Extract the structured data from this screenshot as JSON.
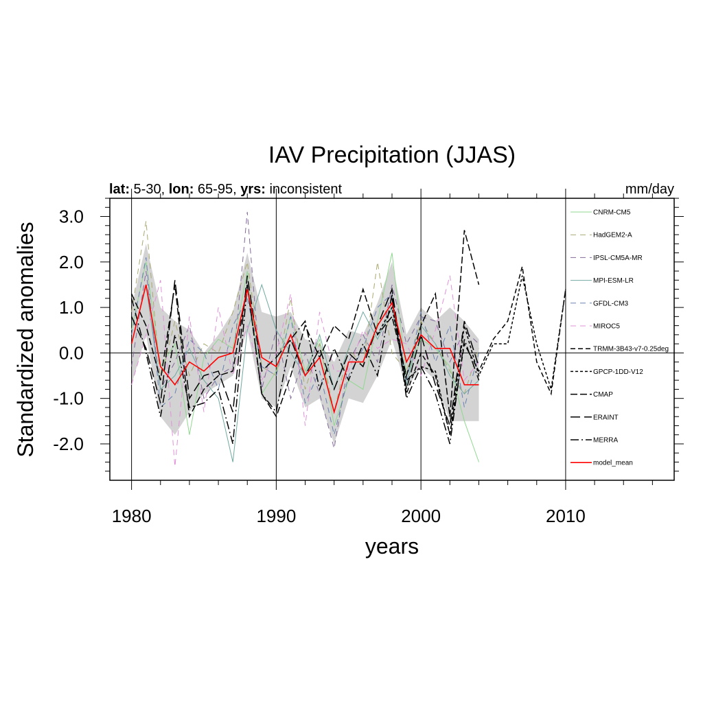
{
  "chart_data": {
    "type": "line",
    "title": "IAV Precipitation (JJAS)",
    "subtitle_parts": [
      {
        "text": "lat:",
        "bold": true
      },
      {
        "text": " 5-30, ",
        "bold": false
      },
      {
        "text": "lon:",
        "bold": true
      },
      {
        "text": " 65-95, ",
        "bold": false
      },
      {
        "text": "yrs:",
        "bold": true
      },
      {
        "text": " inconsistent",
        "bold": false
      }
    ],
    "units": "mm/day",
    "xlabel": "years",
    "ylabel": "Standardized anomalies",
    "xlim": [
      1978.5,
      2017.5
    ],
    "ylim": [
      -2.8,
      3.4
    ],
    "x_ticks": [
      1980,
      1990,
      2000,
      2010
    ],
    "y_ticks": [
      -2.0,
      -1.0,
      0.0,
      1.0,
      2.0,
      3.0
    ],
    "y_tick_labels": [
      "-2.0",
      "-1.0",
      "0.0",
      "1.0",
      "2.0",
      "3.0"
    ],
    "vertical_lines": [
      1980,
      1990,
      2000,
      2010
    ],
    "zero_line": true,
    "legend_placement": "right",
    "spread_band": {
      "x": [
        1980,
        1981,
        1982,
        1983,
        1984,
        1985,
        1986,
        1987,
        1988,
        1989,
        1990,
        1991,
        1992,
        1993,
        1994,
        1995,
        1996,
        1997,
        1998,
        1999,
        2000,
        2001,
        2002,
        2003,
        2004
      ],
      "upper": [
        1.0,
        2.4,
        1.0,
        0.7,
        0.5,
        0.0,
        0.4,
        0.9,
        2.2,
        0.9,
        0.8,
        0.9,
        0.3,
        0.2,
        -0.2,
        0.5,
        0.4,
        1.1,
        2.0,
        0.4,
        1.0,
        0.7,
        1.0,
        0.7,
        0.3
      ],
      "lower": [
        -0.7,
        0.4,
        -1.4,
        -1.8,
        -1.3,
        -0.9,
        -0.7,
        -0.5,
        0.5,
        -1.0,
        -1.2,
        -0.3,
        -1.2,
        -1.0,
        -2.0,
        -1.0,
        -1.1,
        -0.5,
        0.3,
        -0.8,
        -0.3,
        -0.6,
        -1.5,
        -1.5,
        -1.5
      ]
    },
    "series": [
      {
        "name": "CNRM-CM5",
        "color": "#90d890",
        "dash": "",
        "width": 1,
        "x": [
          1980,
          1981,
          1982,
          1983,
          1984,
          1985,
          1986,
          1987,
          1988,
          1989,
          1990,
          1991,
          1992,
          1993,
          1994,
          1995,
          1996,
          1997,
          1998,
          1999,
          2000,
          2001,
          2002,
          2003,
          2004
        ],
        "values": [
          0.5,
          2.0,
          -0.3,
          0.2,
          -1.8,
          -0.1,
          0.3,
          0.1,
          1.8,
          -0.9,
          -0.4,
          0.8,
          -0.4,
          0.3,
          -1.6,
          -0.6,
          -0.8,
          0.7,
          2.2,
          -0.5,
          0.3,
          0.1,
          -0.3,
          -1.5,
          -2.4
        ]
      },
      {
        "name": "HadGEM2-A",
        "color": "#a8a870",
        "dash": "8,6",
        "width": 1,
        "x": [
          1980,
          1981,
          1982,
          1983,
          1984,
          1985,
          1986,
          1987,
          1988,
          1989,
          1990,
          1991,
          1992,
          1993,
          1994,
          1995,
          1996,
          1997,
          1998,
          1999,
          2000,
          2001,
          2002,
          2003,
          2004
        ],
        "values": [
          0.9,
          2.9,
          -0.6,
          0.7,
          -0.5,
          0.2,
          0.0,
          0.9,
          2.0,
          -0.3,
          -0.5,
          1.2,
          -0.8,
          0.2,
          -1.3,
          0.1,
          -0.3,
          2.0,
          0.0,
          -0.4,
          0.7,
          0.2,
          -0.4,
          -0.9,
          0.1
        ]
      },
      {
        "name": "IPSL-CM5A-MR",
        "color": "#806898",
        "dash": "8,6",
        "width": 1,
        "x": [
          1980,
          1981,
          1982,
          1983,
          1984,
          1985,
          1986,
          1987,
          1988,
          1989,
          1990,
          1991,
          1992,
          1993,
          1994,
          1995,
          1996,
          1997,
          1998,
          1999,
          2000,
          2001,
          2002,
          2003,
          2004
        ],
        "values": [
          -0.3,
          1.8,
          -0.8,
          -0.2,
          0.6,
          -1.0,
          -0.5,
          -0.3,
          3.1,
          -0.8,
          0.5,
          -1.0,
          0.0,
          -0.9,
          -2.1,
          -0.2,
          0.4,
          -0.2,
          1.5,
          0.2,
          0.8,
          0.7,
          -0.2,
          0.5,
          0.2
        ]
      },
      {
        "name": "MPI-ESM-LR",
        "color": "#70a8a0",
        "dash": "",
        "width": 1,
        "x": [
          1980,
          1981,
          1982,
          1983,
          1984,
          1985,
          1986,
          1987,
          1988,
          1989,
          1990,
          1991,
          1992,
          1993,
          1994,
          1995,
          1996,
          1997,
          1998,
          1999,
          2000,
          2001,
          2002,
          2003,
          2004
        ],
        "values": [
          0.2,
          1.5,
          -0.8,
          -0.5,
          0.1,
          -0.6,
          -1.0,
          -2.4,
          0.5,
          1.5,
          0.5,
          0.0,
          -0.5,
          0.4,
          -0.8,
          0.1,
          0.9,
          0.3,
          1.0,
          -0.7,
          0.6,
          0.2,
          -0.5,
          -0.9,
          -0.6
        ]
      },
      {
        "name": "GFDL-CM3",
        "color": "#6880b0",
        "dash": "8,6",
        "width": 1,
        "x": [
          1980,
          1981,
          1982,
          1983,
          1984,
          1985,
          1986,
          1987,
          1988,
          1989,
          1990,
          1991,
          1992,
          1993,
          1994,
          1995,
          1996,
          1997,
          1998,
          1999,
          2000,
          2001,
          2002,
          2003,
          2004
        ],
        "values": [
          0.4,
          2.1,
          -1.2,
          -0.9,
          0.3,
          0.0,
          -0.8,
          0.6,
          1.2,
          -0.3,
          -0.5,
          0.8,
          -1.1,
          -0.4,
          -1.8,
          -0.5,
          0.1,
          1.0,
          1.3,
          -0.6,
          0.9,
          -0.2,
          0.6,
          -1.2,
          0.0
        ]
      },
      {
        "name": "MIROC5",
        "color": "#e090d8",
        "dash": "8,6",
        "width": 1,
        "x": [
          1980,
          1981,
          1982,
          1983,
          1984,
          1985,
          1986,
          1987,
          1988,
          1989,
          1990,
          1991,
          1992,
          1993,
          1994,
          1995,
          1996,
          1997,
          1998,
          1999,
          2000,
          2001,
          2002,
          2003,
          2004
        ],
        "values": [
          -0.7,
          0.4,
          1.6,
          -2.5,
          0.8,
          -1.3,
          1.0,
          -0.5,
          0.6,
          -0.6,
          0.0,
          1.3,
          -1.6,
          0.9,
          -0.4,
          -0.4,
          0.5,
          0.1,
          0.3,
          0.2,
          -0.5,
          0.5,
          1.7,
          -0.6,
          -0.2
        ]
      },
      {
        "name": "TRMM-3B43-v7-0.25deg",
        "color": "#000000",
        "dash": "7,4",
        "width": 1.5,
        "x": [
          1998,
          1999,
          2000,
          2001,
          2002,
          2003,
          2004,
          2005,
          2006,
          2007,
          2008,
          2009,
          2010
        ],
        "values": [
          1.2,
          -0.9,
          0.0,
          -0.5,
          -1.8,
          0.2,
          -0.4,
          0.3,
          0.7,
          1.9,
          -0.2,
          -0.9,
          1.4
        ]
      },
      {
        "name": "GPCP-1DD-V12",
        "color": "#000000",
        "dash": "4,3",
        "width": 1.5,
        "x": [
          1997,
          1998,
          1999,
          2000,
          2001,
          2002,
          2003,
          2004,
          2005,
          2006,
          2007,
          2008,
          2009,
          2010
        ],
        "values": [
          0.4,
          1.0,
          -0.6,
          -0.3,
          -0.4,
          -1.8,
          0.6,
          -0.5,
          0.2,
          0.2,
          1.7,
          0.2,
          -0.8,
          1.4
        ]
      },
      {
        "name": "CMAP",
        "color": "#000000",
        "dash": "10,4",
        "width": 1.5,
        "x": [
          1980,
          1981,
          1982,
          1983,
          1984,
          1985,
          1986,
          1987,
          1988,
          1989,
          1990,
          1991,
          1992,
          1993,
          1994,
          1995,
          1996,
          1997,
          1998,
          1999,
          2000,
          2001,
          2002,
          2003,
          2004
        ],
        "values": [
          1.3,
          0.6,
          -0.6,
          1.5,
          -1.4,
          -0.8,
          -0.5,
          -0.4,
          1.5,
          -0.9,
          -1.4,
          -0.5,
          0.6,
          -0.1,
          0.6,
          0.3,
          1.4,
          0.4,
          0.8,
          -0.5,
          0.6,
          1.3,
          -1.4,
          2.7,
          1.5
        ]
      },
      {
        "name": "ERAINT",
        "color": "#000000",
        "dash": "14,6",
        "width": 1.5,
        "x": [
          1980,
          1981,
          1982,
          1983,
          1984,
          1985,
          1986,
          1987,
          1988,
          1989,
          1990,
          1991,
          1992,
          1993,
          1994,
          1995,
          1996,
          1997,
          1998,
          1999,
          2000,
          2001,
          2002,
          2003,
          2004
        ],
        "values": [
          0.8,
          0.1,
          -1.1,
          1.6,
          -1.0,
          -0.5,
          -0.4,
          -1.3,
          1.7,
          -0.4,
          -0.1,
          0.3,
          -0.5,
          0.1,
          -0.8,
          0.0,
          -0.3,
          0.6,
          1.4,
          -0.8,
          0.4,
          -0.7,
          -1.6,
          0.7,
          -0.3
        ]
      },
      {
        "name": "MERRA",
        "color": "#000000",
        "dash": "12,4,2,4",
        "width": 1.5,
        "x": [
          1980,
          1981,
          1982,
          1983,
          1984,
          1985,
          1986,
          1987,
          1988,
          1989,
          1990,
          1991,
          1992,
          1993,
          1994,
          1995,
          1996,
          1997,
          1998,
          1999,
          2000,
          2001,
          2002,
          2003,
          2004
        ],
        "values": [
          1.2,
          0.0,
          -1.4,
          0.4,
          -1.2,
          -1.1,
          -0.8,
          -2.0,
          1.5,
          -0.9,
          -1.3,
          0.3,
          0.7,
          -0.8,
          0.1,
          -0.6,
          0.2,
          -0.5,
          1.3,
          -1.0,
          -0.3,
          -0.9,
          -2.0,
          0.3,
          -0.6
        ]
      },
      {
        "name": "model_mean",
        "color": "#ff0000",
        "dash": "",
        "width": 1.6,
        "x": [
          1980,
          1981,
          1982,
          1983,
          1984,
          1985,
          1986,
          1987,
          1988,
          1989,
          1990,
          1991,
          1992,
          1993,
          1994,
          1995,
          1996,
          1997,
          1998,
          1999,
          2000,
          2001,
          2002,
          2003,
          2004
        ],
        "values": [
          0.2,
          1.5,
          -0.3,
          -0.7,
          -0.2,
          -0.4,
          -0.1,
          0.0,
          1.4,
          -0.1,
          -0.3,
          0.4,
          -0.5,
          -0.1,
          -1.3,
          -0.2,
          -0.2,
          0.6,
          1.1,
          -0.2,
          0.4,
          0.1,
          0.1,
          -0.7,
          -0.7
        ]
      }
    ]
  }
}
